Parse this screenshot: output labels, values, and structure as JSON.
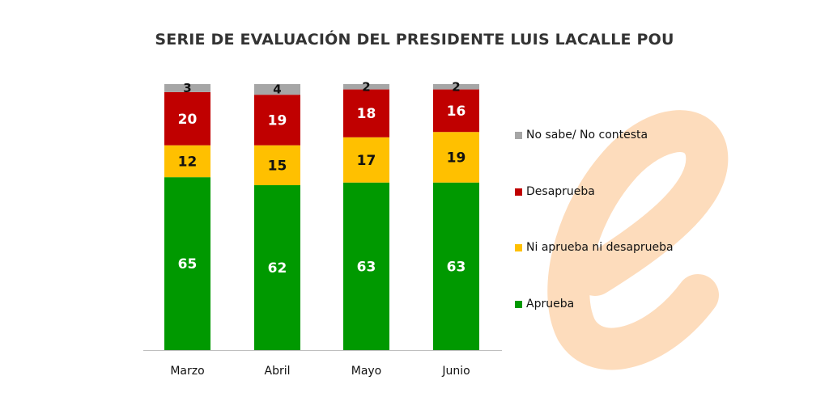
{
  "chart_data": {
    "type": "bar",
    "stacked": true,
    "title": "SERIE DE EVALUACIÓN DEL PRESIDENTE LUIS LACALLE POU",
    "categories": [
      "Marzo",
      "Abril",
      "Mayo",
      "Junio"
    ],
    "series": [
      {
        "name": "Aprueba",
        "color": "#009900",
        "values": [
          65,
          62,
          63,
          63
        ]
      },
      {
        "name": "Ni aprueba ni desaprueba",
        "color": "#ffc000",
        "values": [
          12,
          15,
          17,
          19
        ]
      },
      {
        "name": "Desaprueba",
        "color": "#c00000",
        "values": [
          20,
          19,
          18,
          16
        ]
      },
      {
        "name": "No sabe/  No contesta",
        "color": "#a6a6a6",
        "values": [
          3,
          4,
          2,
          2
        ]
      }
    ],
    "ylim": [
      0,
      100
    ],
    "grid": false,
    "legend_placement": "right",
    "legend_order": [
      "No sabe/  No contesta",
      "Desaprueba",
      "Ni aprueba ni desaprueba",
      "Aprueba"
    ]
  },
  "watermark": {
    "text": "e",
    "color": "#fddcbc"
  }
}
